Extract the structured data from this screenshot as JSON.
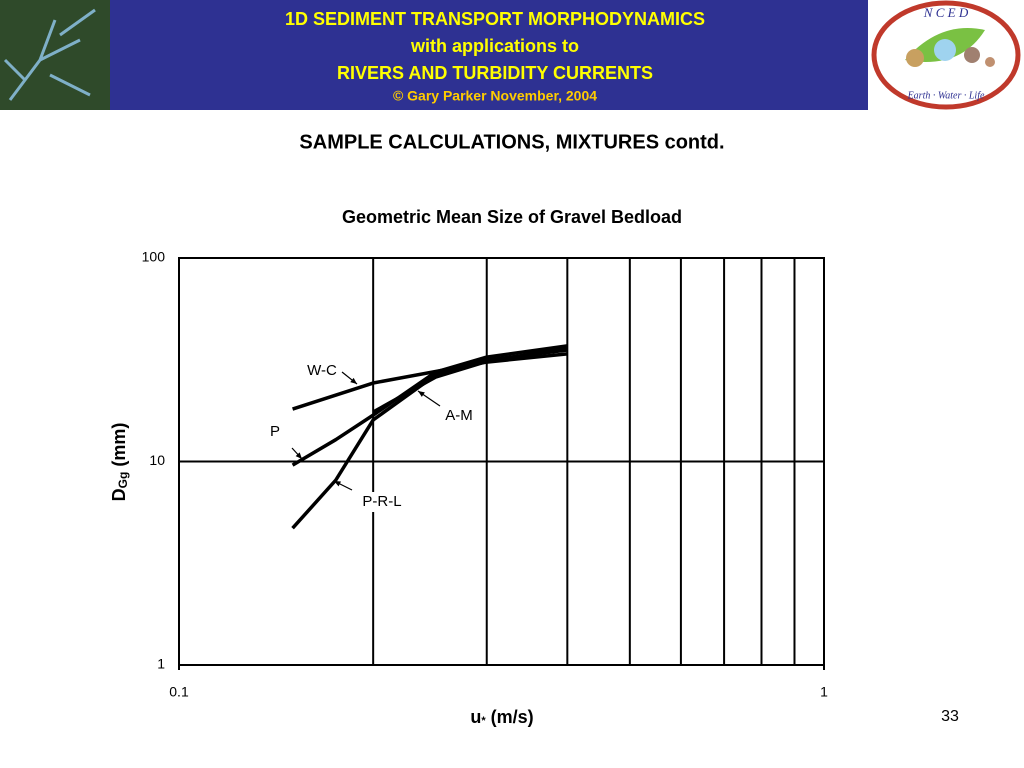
{
  "header": {
    "lines": [
      "1D SEDIMENT TRANSPORT MORPHODYNAMICS",
      "with applications to",
      "RIVERS AND TURBIDITY CURRENTS"
    ],
    "credit": "© Gary Parker November, 2004",
    "logo_letters": "N C E D",
    "logo_motto": "Earth · Water · Life"
  },
  "slide_title": "SAMPLE CALCULATIONS, MIXTURES contd.",
  "page_number": "33",
  "chart_data": {
    "type": "line",
    "title": "Geometric Mean Size of Gravel Bedload",
    "x_label": {
      "main": "u",
      "sub": "*",
      "unit": "(m/s)"
    },
    "y_label": {
      "main": "D",
      "sub": "Gg",
      "unit": "(mm)"
    },
    "log_x": true,
    "log_y": true,
    "grid": true,
    "xlim": [
      0.1,
      1
    ],
    "ylim": [
      1,
      100
    ],
    "xticks": [
      0.1,
      1
    ],
    "yticks": [
      1,
      10,
      100
    ],
    "x_minor_grid": [
      0.2,
      0.3,
      0.4,
      0.5,
      0.6,
      0.7,
      0.8,
      0.9
    ],
    "series": [
      {
        "name": "W-C",
        "color": "#000000",
        "x": [
          0.15,
          0.2,
          0.3,
          0.4
        ],
        "values": [
          18.1,
          24.3,
          30.8,
          33.8
        ]
      },
      {
        "name": "P",
        "color": "#000000",
        "x": [
          0.15,
          0.175,
          0.2,
          0.25,
          0.3,
          0.4
        ],
        "values": [
          9.6,
          12.8,
          16.9,
          27.5,
          32.6,
          37.0
        ]
      },
      {
        "name": "A-M",
        "color": "#000000",
        "x": [
          0.2,
          0.25,
          0.3,
          0.4
        ],
        "values": [
          17.5,
          26.0,
          31.0,
          36.2
        ]
      },
      {
        "name": "P-R-L",
        "color": "#000000",
        "x": [
          0.15,
          0.175,
          0.2,
          0.25,
          0.3,
          0.4
        ],
        "values": [
          4.7,
          8.1,
          16.0,
          26.6,
          31.5,
          35.3
        ]
      }
    ]
  }
}
